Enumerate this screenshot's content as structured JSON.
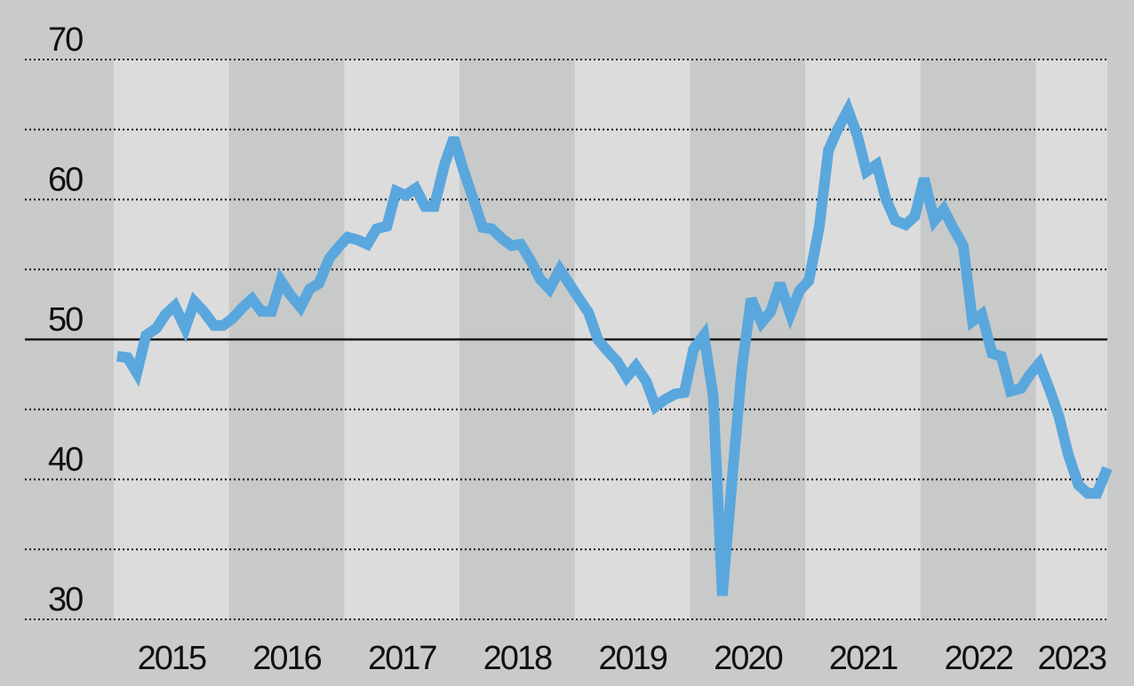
{
  "chart_data": {
    "type": "line",
    "x": [
      2015.03,
      2015.12,
      2015.2,
      2015.28,
      2015.37,
      2015.45,
      2015.53,
      2015.62,
      2015.7,
      2015.78,
      2015.87,
      2015.95,
      2016.03,
      2016.12,
      2016.2,
      2016.28,
      2016.37,
      2016.45,
      2016.53,
      2016.62,
      2016.7,
      2016.78,
      2016.87,
      2016.95,
      2017.03,
      2017.12,
      2017.2,
      2017.28,
      2017.37,
      2017.45,
      2017.53,
      2017.62,
      2017.7,
      2017.78,
      2017.87,
      2017.95,
      2018.03,
      2018.12,
      2018.2,
      2018.28,
      2018.37,
      2018.45,
      2018.53,
      2018.62,
      2018.7,
      2018.78,
      2018.87,
      2018.95,
      2019.03,
      2019.12,
      2019.2,
      2019.28,
      2019.37,
      2019.45,
      2019.53,
      2019.62,
      2019.7,
      2019.78,
      2019.87,
      2019.95,
      2020.03,
      2020.12,
      2020.2,
      2020.28,
      2020.37,
      2020.45,
      2020.53,
      2020.62,
      2020.7,
      2020.78,
      2020.87,
      2020.95,
      2021.03,
      2021.12,
      2021.2,
      2021.28,
      2021.37,
      2021.45,
      2021.53,
      2021.62,
      2021.7,
      2021.78,
      2021.87,
      2021.95,
      2022.03,
      2022.12,
      2022.2,
      2022.28,
      2022.37,
      2022.45,
      2022.53,
      2022.62,
      2022.7,
      2022.78,
      2022.87,
      2022.95,
      2023.03,
      2023.12,
      2023.2,
      2023.28,
      2023.37,
      2023.45,
      2023.53,
      2023.62
    ],
    "series": [
      {
        "color": "#5aa7dd",
        "values": [
          48.8,
          48.7,
          47.6,
          50.3,
          50.8,
          51.8,
          52.4,
          50.8,
          52.7,
          52.0,
          51.0,
          51.0,
          51.5,
          52.3,
          52.9,
          52.0,
          52.0,
          54.2,
          53.2,
          52.3,
          53.6,
          54.0,
          55.8,
          56.6,
          57.3,
          57.1,
          56.8,
          57.9,
          58.1,
          60.6,
          60.3,
          60.8,
          59.5,
          59.5,
          62.5,
          64.4,
          62.2,
          60.0,
          58.0,
          57.9,
          57.2,
          56.7,
          56.8,
          55.6,
          54.3,
          53.6,
          55.0,
          54.0,
          53.0,
          51.9,
          50.0,
          49.2,
          48.4,
          47.3,
          48.1,
          47.0,
          45.2,
          45.7,
          46.1,
          46.2,
          49.3,
          50.3,
          46.0,
          31.7,
          40.5,
          48.0,
          52.9,
          51.2,
          52.0,
          54.0,
          51.8,
          53.5,
          54.2,
          58.0,
          63.5,
          65.0,
          66.4,
          64.6,
          62.0,
          62.5,
          60.0,
          58.5,
          58.2,
          58.8,
          61.5,
          58.5,
          59.3,
          58.0,
          56.7,
          51.3,
          51.8,
          49.0,
          48.8,
          46.3,
          46.5,
          47.5,
          48.3,
          46.4,
          44.5,
          41.8,
          39.6,
          39.0,
          39.0,
          40.8
        ]
      }
    ],
    "xlim": [
      2015,
      2023.62
    ],
    "xticks": [
      {
        "value": 2015,
        "label": "2015"
      },
      {
        "value": 2016,
        "label": "2016"
      },
      {
        "value": 2017,
        "label": "2017"
      },
      {
        "value": 2018,
        "label": "2018"
      },
      {
        "value": 2019,
        "label": "2019"
      },
      {
        "value": 2020,
        "label": "2020"
      },
      {
        "value": 2021,
        "label": "2021"
      },
      {
        "value": 2022,
        "label": "2022"
      },
      {
        "value": 2023,
        "label": "2023"
      }
    ],
    "ylim": [
      30,
      70
    ],
    "yticks": [
      30,
      40,
      50,
      60,
      70
    ],
    "minor_yticks": [
      35,
      45,
      55,
      65
    ],
    "hline": 50,
    "grid": true
  }
}
